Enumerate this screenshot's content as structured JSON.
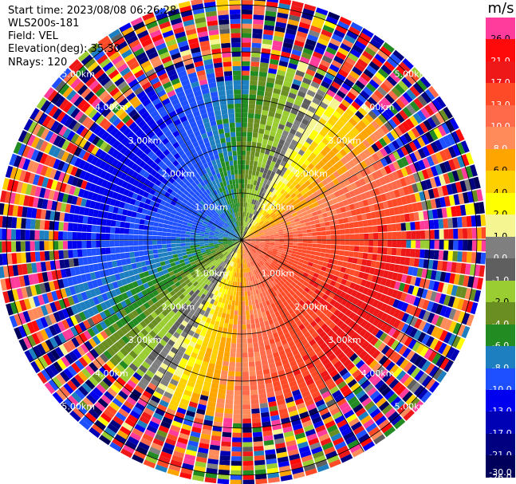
{
  "header": {
    "start_time": "Start time: 2023/08/08 06:26:28",
    "instrument": "WLS200s-181",
    "field": "Field: VEL",
    "elevation": "Elevation(deg): 35.30",
    "nrays": "NRays: 120"
  },
  "colorbar": {
    "unit": "m/s",
    "levels": [
      "26.0",
      "21.0",
      "17.0",
      "13.0",
      "10.0",
      "8.0",
      "6.0",
      "4.0",
      "2.0",
      "1.0",
      "0.0",
      "-1.0",
      "-2.0",
      "-4.0",
      "-6.0",
      "-8.0",
      "-10.0",
      "-13.0",
      "-17.0",
      "-21.0",
      "-26.0",
      "-30.0"
    ],
    "colors": [
      "#ff3c9b",
      "#ff0a0a",
      "#ee1818",
      "#ff4a28",
      "#ff6a4a",
      "#ff8a5a",
      "#ffa500",
      "#ffd000",
      "#ffff00",
      "#f5f591",
      "#7f7f7f",
      "#5f5f5f",
      "#9acd32",
      "#6b8e23",
      "#228b22",
      "#1e7fc0",
      "#1e50ff",
      "#0000ee",
      "#0000b4",
      "#000080",
      "#00005a"
    ]
  },
  "chart_data": {
    "type": "heatmap",
    "projection": "polar PPI",
    "field": "VEL",
    "units": "m/s",
    "nrays": 120,
    "range_rings_km": [
      1.0,
      2.0,
      3.0,
      4.0,
      5.0
    ],
    "ring_labels": [
      "1.00km",
      "2.00km",
      "3.00km",
      "4.00km",
      "5.00km"
    ],
    "max_range_km": 5.2,
    "velocity_pattern": {
      "approaching_sector": "north-west (blue/green, -10 to -4 m/s)",
      "receding_sector": "south-east (orange/red, 6 to 13 m/s)",
      "far_range": "noisy (all colors)"
    }
  }
}
